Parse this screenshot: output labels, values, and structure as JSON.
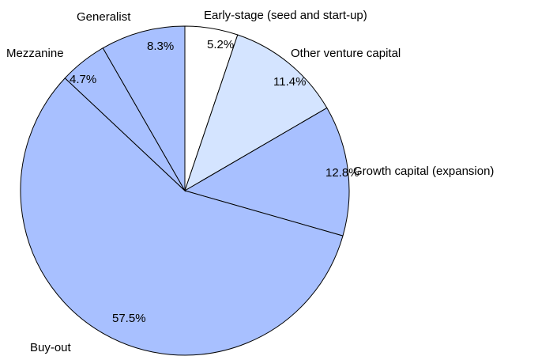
{
  "chart_data": {
    "type": "pie",
    "categories": [
      "Early-stage (seed and start-up)",
      "Other venture capital",
      "Growth capital (expansion)",
      "Buy-out",
      "Mezzanine",
      "Generalist"
    ],
    "values": [
      5.2,
      11.4,
      12.8,
      57.5,
      4.7,
      8.3
    ],
    "value_labels": [
      "5.2%",
      "11.4%",
      "12.8%",
      "57.5%",
      "4.7%",
      "8.3%"
    ],
    "colors": [
      "#ffffff",
      "#d4e4ff",
      "#a8c0ff",
      "#a8c0ff",
      "#a8c0ff",
      "#a8c0ff"
    ]
  }
}
